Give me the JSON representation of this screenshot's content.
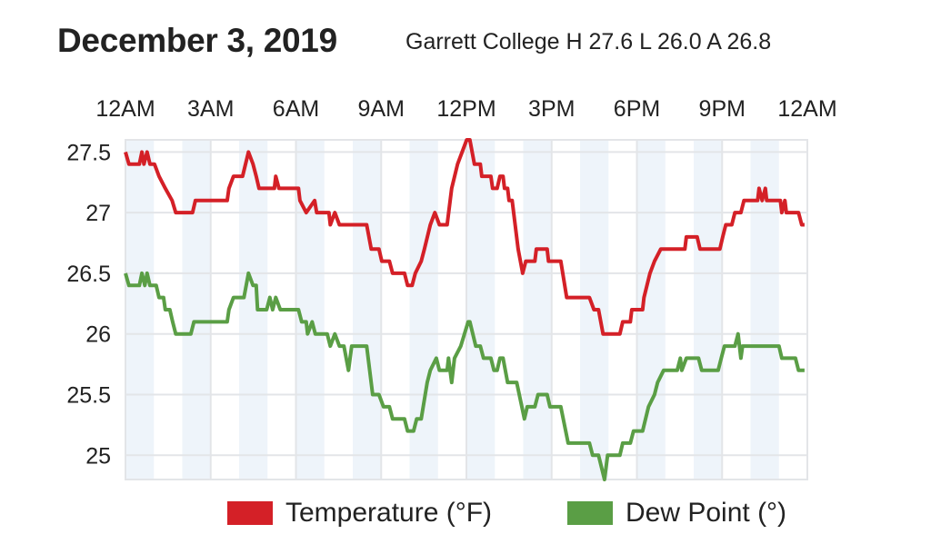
{
  "header": {
    "date": "December 3, 2019",
    "summary": "Garrett College H 27.6 L 26.0 A 26.8"
  },
  "chart_data": {
    "type": "line",
    "title": "December 3, 2019",
    "subtitle": "Garrett College H 27.6 L 26.0 A 26.8",
    "xlabel": "",
    "ylabel": "",
    "x_unit": "hours since midnight",
    "xlim": [
      0,
      24
    ],
    "ylim": [
      24.8,
      27.6
    ],
    "x_ticks": [
      0,
      3,
      6,
      9,
      12,
      15,
      18,
      21,
      24
    ],
    "x_tick_labels": [
      "12AM",
      "3AM",
      "6AM",
      "9AM",
      "12PM",
      "3PM",
      "6PM",
      "9PM",
      "12AM"
    ],
    "x_tick_position": "top",
    "y_ticks": [
      25,
      25.5,
      26,
      26.5,
      27,
      27.5
    ],
    "y_tick_labels": [
      "25",
      "25.5",
      "26",
      "26.5",
      "27",
      "27.5"
    ],
    "grid": true,
    "shaded_hour_bands": "alternate hours",
    "legend_position": "bottom",
    "series": [
      {
        "name": "Temperature (°F)",
        "color": "#d42027",
        "points": [
          [
            0,
            27.5
          ],
          [
            0.12,
            27.4
          ],
          [
            0.49,
            27.4
          ],
          [
            0.58,
            27.5
          ],
          [
            0.65,
            27.4
          ],
          [
            0.76,
            27.5
          ],
          [
            0.86,
            27.4
          ],
          [
            1.02,
            27.4
          ],
          [
            1.18,
            27.3
          ],
          [
            1.4,
            27.2
          ],
          [
            1.64,
            27.1
          ],
          [
            1.77,
            27.0
          ],
          [
            2.36,
            27.0
          ],
          [
            2.46,
            27.1
          ],
          [
            3.58,
            27.1
          ],
          [
            3.64,
            27.2
          ],
          [
            3.8,
            27.3
          ],
          [
            4.12,
            27.3
          ],
          [
            4.33,
            27.5
          ],
          [
            4.49,
            27.4
          ],
          [
            4.6,
            27.3
          ],
          [
            4.7,
            27.2
          ],
          [
            5.24,
            27.2
          ],
          [
            5.29,
            27.3
          ],
          [
            5.4,
            27.2
          ],
          [
            6.09,
            27.2
          ],
          [
            6.14,
            27.1
          ],
          [
            6.36,
            27.0
          ],
          [
            6.66,
            27.1
          ],
          [
            6.73,
            27.0
          ],
          [
            7.16,
            27.0
          ],
          [
            7.21,
            26.9
          ],
          [
            7.37,
            27.0
          ],
          [
            7.53,
            26.9
          ],
          [
            8.49,
            26.9
          ],
          [
            8.65,
            26.7
          ],
          [
            8.92,
            26.7
          ],
          [
            9.02,
            26.6
          ],
          [
            9.29,
            26.6
          ],
          [
            9.4,
            26.5
          ],
          [
            9.82,
            26.5
          ],
          [
            9.93,
            26.4
          ],
          [
            10.09,
            26.4
          ],
          [
            10.2,
            26.5
          ],
          [
            10.41,
            26.6
          ],
          [
            10.52,
            26.7
          ],
          [
            10.73,
            26.9
          ],
          [
            10.89,
            27.0
          ],
          [
            11.05,
            26.9
          ],
          [
            11.32,
            26.9
          ],
          [
            11.48,
            27.2
          ],
          [
            11.69,
            27.4
          ],
          [
            12.01,
            27.6
          ],
          [
            12.12,
            27.6
          ],
          [
            12.28,
            27.4
          ],
          [
            12.49,
            27.4
          ],
          [
            12.54,
            27.3
          ],
          [
            12.86,
            27.3
          ],
          [
            12.92,
            27.2
          ],
          [
            13.08,
            27.2
          ],
          [
            13.18,
            27.3
          ],
          [
            13.29,
            27.3
          ],
          [
            13.34,
            27.2
          ],
          [
            13.45,
            27.2
          ],
          [
            13.5,
            27.1
          ],
          [
            13.61,
            27.1
          ],
          [
            13.82,
            26.7
          ],
          [
            13.98,
            26.5
          ],
          [
            14.09,
            26.6
          ],
          [
            14.41,
            26.6
          ],
          [
            14.46,
            26.7
          ],
          [
            14.84,
            26.7
          ],
          [
            14.89,
            26.6
          ],
          [
            15.32,
            26.6
          ],
          [
            15.53,
            26.3
          ],
          [
            16.33,
            26.3
          ],
          [
            16.49,
            26.2
          ],
          [
            16.65,
            26.2
          ],
          [
            16.81,
            26.0
          ],
          [
            17.4,
            26.0
          ],
          [
            17.5,
            26.1
          ],
          [
            17.77,
            26.1
          ],
          [
            17.82,
            26.2
          ],
          [
            18.2,
            26.2
          ],
          [
            18.25,
            26.3
          ],
          [
            18.46,
            26.5
          ],
          [
            18.62,
            26.6
          ],
          [
            18.84,
            26.7
          ],
          [
            19.69,
            26.7
          ],
          [
            19.74,
            26.8
          ],
          [
            20.12,
            26.8
          ],
          [
            20.22,
            26.7
          ],
          [
            20.92,
            26.7
          ],
          [
            21.02,
            26.8
          ],
          [
            21.13,
            26.9
          ],
          [
            21.34,
            26.9
          ],
          [
            21.45,
            27.0
          ],
          [
            21.66,
            27.0
          ],
          [
            21.77,
            27.1
          ],
          [
            22.25,
            27.1
          ],
          [
            22.3,
            27.2
          ],
          [
            22.41,
            27.1
          ],
          [
            22.52,
            27.2
          ],
          [
            22.57,
            27.1
          ],
          [
            23.05,
            27.1
          ],
          [
            23.1,
            27.0
          ],
          [
            23.21,
            27.1
          ],
          [
            23.26,
            27.0
          ],
          [
            23.69,
            27.0
          ],
          [
            23.8,
            26.9
          ],
          [
            23.9,
            26.9
          ]
        ]
      },
      {
        "name": "Dew Point (°)",
        "color": "#5a9e45",
        "points": [
          [
            0,
            26.5
          ],
          [
            0.12,
            26.4
          ],
          [
            0.49,
            26.4
          ],
          [
            0.58,
            26.5
          ],
          [
            0.68,
            26.4
          ],
          [
            0.76,
            26.5
          ],
          [
            0.86,
            26.4
          ],
          [
            1.08,
            26.4
          ],
          [
            1.18,
            26.3
          ],
          [
            1.34,
            26.3
          ],
          [
            1.4,
            26.2
          ],
          [
            1.56,
            26.2
          ],
          [
            1.66,
            26.1
          ],
          [
            1.77,
            26.0
          ],
          [
            2.3,
            26.0
          ],
          [
            2.41,
            26.1
          ],
          [
            3.58,
            26.1
          ],
          [
            3.64,
            26.2
          ],
          [
            3.8,
            26.3
          ],
          [
            4.17,
            26.3
          ],
          [
            4.33,
            26.5
          ],
          [
            4.49,
            26.4
          ],
          [
            4.6,
            26.4
          ],
          [
            4.65,
            26.2
          ],
          [
            4.97,
            26.2
          ],
          [
            5.08,
            26.3
          ],
          [
            5.18,
            26.2
          ],
          [
            5.29,
            26.3
          ],
          [
            5.45,
            26.2
          ],
          [
            6.09,
            26.2
          ],
          [
            6.2,
            26.1
          ],
          [
            6.36,
            26.1
          ],
          [
            6.41,
            26.0
          ],
          [
            6.57,
            26.1
          ],
          [
            6.68,
            26.0
          ],
          [
            7.1,
            26.0
          ],
          [
            7.21,
            25.9
          ],
          [
            7.37,
            26.0
          ],
          [
            7.53,
            25.9
          ],
          [
            7.69,
            25.9
          ],
          [
            7.85,
            25.7
          ],
          [
            7.96,
            25.9
          ],
          [
            8.49,
            25.9
          ],
          [
            8.7,
            25.5
          ],
          [
            8.92,
            25.5
          ],
          [
            9.08,
            25.4
          ],
          [
            9.29,
            25.4
          ],
          [
            9.4,
            25.3
          ],
          [
            9.82,
            25.3
          ],
          [
            9.93,
            25.2
          ],
          [
            10.14,
            25.2
          ],
          [
            10.25,
            25.3
          ],
          [
            10.41,
            25.3
          ],
          [
            10.62,
            25.6
          ],
          [
            10.73,
            25.7
          ],
          [
            10.94,
            25.8
          ],
          [
            11.05,
            25.7
          ],
          [
            11.32,
            25.7
          ],
          [
            11.37,
            25.8
          ],
          [
            11.48,
            25.6
          ],
          [
            11.58,
            25.8
          ],
          [
            11.8,
            25.9
          ],
          [
            12.06,
            26.1
          ],
          [
            12.12,
            26.1
          ],
          [
            12.33,
            25.9
          ],
          [
            12.49,
            25.9
          ],
          [
            12.6,
            25.8
          ],
          [
            12.86,
            25.8
          ],
          [
            12.97,
            25.7
          ],
          [
            13.08,
            25.7
          ],
          [
            13.18,
            25.8
          ],
          [
            13.29,
            25.8
          ],
          [
            13.45,
            25.6
          ],
          [
            13.77,
            25.6
          ],
          [
            14.04,
            25.3
          ],
          [
            14.14,
            25.4
          ],
          [
            14.41,
            25.4
          ],
          [
            14.52,
            25.5
          ],
          [
            14.84,
            25.5
          ],
          [
            14.94,
            25.4
          ],
          [
            15.32,
            25.4
          ],
          [
            15.58,
            25.1
          ],
          [
            16.33,
            25.1
          ],
          [
            16.44,
            25.0
          ],
          [
            16.65,
            25.0
          ],
          [
            16.86,
            24.8
          ],
          [
            16.97,
            25.0
          ],
          [
            17.4,
            25.0
          ],
          [
            17.5,
            25.1
          ],
          [
            17.77,
            25.1
          ],
          [
            17.88,
            25.2
          ],
          [
            18.2,
            25.2
          ],
          [
            18.41,
            25.4
          ],
          [
            18.62,
            25.5
          ],
          [
            18.73,
            25.6
          ],
          [
            18.94,
            25.7
          ],
          [
            19.42,
            25.7
          ],
          [
            19.53,
            25.8
          ],
          [
            19.58,
            25.7
          ],
          [
            19.74,
            25.8
          ],
          [
            20.17,
            25.8
          ],
          [
            20.28,
            25.7
          ],
          [
            20.86,
            25.7
          ],
          [
            20.97,
            25.8
          ],
          [
            21.08,
            25.9
          ],
          [
            21.45,
            25.9
          ],
          [
            21.56,
            26.0
          ],
          [
            21.66,
            25.8
          ],
          [
            21.72,
            25.9
          ],
          [
            23.0,
            25.9
          ],
          [
            23.1,
            25.8
          ],
          [
            23.58,
            25.8
          ],
          [
            23.69,
            25.7
          ],
          [
            23.9,
            25.7
          ]
        ]
      }
    ]
  },
  "legend": {
    "items": [
      {
        "label": "Temperature (°F)",
        "color": "#d42027"
      },
      {
        "label": "Dew Point (°)",
        "color": "#5a9e45"
      }
    ]
  }
}
